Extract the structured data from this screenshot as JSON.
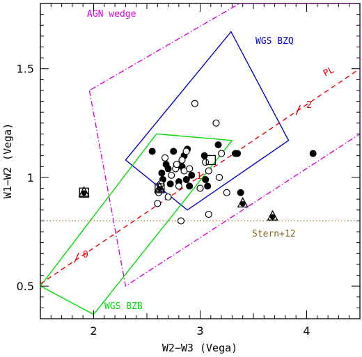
{
  "chart_data": {
    "type": "scatter",
    "xlabel": "W2−W3 (Vega)",
    "ylabel": "W1−W2 (Vega)",
    "xlim": [
      1.5,
      4.5
    ],
    "ylim": [
      0.35,
      1.8
    ],
    "xticks": [
      2,
      3,
      4
    ],
    "yticks": [
      0.5,
      1,
      1.5
    ],
    "xtick_labels": [
      "2",
      "3",
      "4"
    ],
    "ytick_labels": [
      "0.5",
      "1",
      "1.5"
    ],
    "grid": false,
    "regions": [
      {
        "label": "AGN wedge",
        "color": "#dd00dd",
        "style": "dash-dot",
        "points": [
          [
            1.96,
            1.4
          ],
          [
            2.3,
            0.5
          ],
          [
            4.5,
            1.2
          ],
          [
            4.5,
            1.8
          ],
          [
            3.37,
            1.8
          ]
        ]
      },
      {
        "label": "WGS BZQ",
        "color": "#0000cc",
        "style": "solid",
        "points": [
          [
            2.3,
            1.08
          ],
          [
            3.29,
            1.67
          ],
          [
            3.83,
            1.17
          ],
          [
            2.88,
            0.85
          ]
        ]
      },
      {
        "label": "WGS BZB",
        "color": "#00dd00",
        "style": "solid",
        "points": [
          [
            1.5,
            0.5
          ],
          [
            2.0,
            0.37
          ],
          [
            3.3,
            1.17
          ],
          [
            2.59,
            1.2
          ]
        ]
      }
    ],
    "lines": [
      {
        "label": "PL",
        "color": "#ee0000",
        "style": "dashed",
        "points": [
          [
            1.5,
            0.51
          ],
          [
            4.5,
            1.5
          ]
        ],
        "markers": [
          {
            "label": "0",
            "x": 1.84,
            "y": 0.63
          },
          {
            "label": "1",
            "x": 2.89,
            "y": 0.98
          },
          {
            "label": "2",
            "x": 3.92,
            "y": 1.31
          }
        ]
      },
      {
        "label": "Stern+12",
        "color": "#886622",
        "style": "dotted",
        "points": [
          [
            1.5,
            0.8
          ],
          [
            4.5,
            0.8
          ]
        ]
      }
    ],
    "series": [
      {
        "marker": "filled-circle",
        "color": "#000000",
        "points": [
          [
            2.55,
            1.12
          ],
          [
            2.64,
            1.02
          ],
          [
            2.65,
            0.99
          ],
          [
            2.68,
            1.06
          ],
          [
            2.7,
            1.04
          ],
          [
            2.72,
            0.97
          ],
          [
            2.75,
            1.12
          ],
          [
            2.8,
            0.98
          ],
          [
            2.83,
            1.05
          ],
          [
            2.85,
            1.1
          ],
          [
            2.87,
            0.99
          ],
          [
            2.88,
            1.13
          ],
          [
            2.9,
            0.96
          ],
          [
            2.92,
            1.01
          ],
          [
            3.04,
            1.1
          ],
          [
            3.05,
            0.99
          ],
          [
            3.07,
            0.96
          ],
          [
            3.17,
            1.15
          ],
          [
            3.33,
            1.11
          ],
          [
            3.35,
            1.11
          ],
          [
            3.38,
            0.93
          ],
          [
            4.06,
            1.11
          ]
        ]
      },
      {
        "marker": "open-circle",
        "color": "#000000",
        "points": [
          [
            2.6,
            0.88
          ],
          [
            2.61,
            0.93
          ],
          [
            2.63,
            0.97
          ],
          [
            2.67,
            1.09
          ],
          [
            2.7,
            0.91
          ],
          [
            2.73,
            1.01
          ],
          [
            2.77,
            1.04
          ],
          [
            2.78,
            1.06
          ],
          [
            2.8,
            0.96
          ],
          [
            2.83,
            1.08
          ],
          [
            2.85,
            1.03
          ],
          [
            2.87,
            1.12
          ],
          [
            2.9,
            1.04
          ],
          [
            2.95,
            1.34
          ],
          [
            3.0,
            0.95
          ],
          [
            3.05,
            1.07
          ],
          [
            3.08,
            1.03
          ],
          [
            3.15,
            1.25
          ],
          [
            3.18,
            1.0
          ],
          [
            3.25,
            0.93
          ],
          [
            3.08,
            0.83
          ],
          [
            2.82,
            0.8
          ],
          [
            3.2,
            1.11
          ]
        ]
      },
      {
        "marker": "triangle",
        "color": "#000000",
        "points": [
          [
            1.91,
            0.93
          ],
          [
            2.62,
            0.95
          ],
          [
            3.4,
            0.88
          ],
          [
            3.68,
            0.82
          ]
        ]
      },
      {
        "marker": "open-square",
        "color": "#000000",
        "points": [
          [
            1.91,
            0.93
          ],
          [
            2.62,
            0.95
          ],
          [
            3.1,
            1.08
          ]
        ]
      }
    ]
  }
}
